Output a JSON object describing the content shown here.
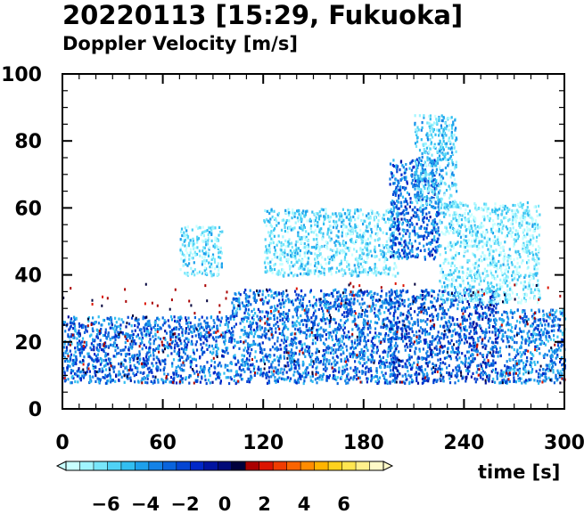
{
  "title": "20220113 [15:29, Fukuoka]",
  "subtitle": "Doppler Velocity [m/s]",
  "chart_data": {
    "type": "heatmap",
    "title": "20220113 [15:29, Fukuoka]",
    "subtitle": "Doppler Velocity [m/s]",
    "xlabel": "time [s]",
    "ylabel": "",
    "xlim": [
      0,
      300
    ],
    "ylim": [
      0,
      100
    ],
    "x_ticks": [
      0,
      60,
      120,
      180,
      240,
      300
    ],
    "y_ticks": [
      0,
      20,
      40,
      60,
      80,
      100
    ],
    "colorbar": {
      "range": [
        -8,
        8
      ],
      "tick_values": [
        -6,
        -4,
        -2,
        0,
        2,
        4,
        6
      ],
      "tick_labels": [
        "−6",
        "−4",
        "−2",
        "0",
        "2",
        "4",
        "6"
      ],
      "colors": [
        "#c8ffff",
        "#a0f5ff",
        "#78e6fa",
        "#50d2f5",
        "#32bef0",
        "#1ea0eb",
        "#1482e6",
        "#0a64dc",
        "#0546d2",
        "#0028c8",
        "#0014a0",
        "#000a78",
        "#00003c",
        "#aa0000",
        "#dc1400",
        "#f03c00",
        "#fa6400",
        "#ff8c00",
        "#ffb400",
        "#ffd21e",
        "#ffe650",
        "#fff08c",
        "#fffac8"
      ]
    },
    "regions": [
      {
        "x": [
          100,
          200
        ],
        "y": [
          8,
          36
        ],
        "v": -3.2
      },
      {
        "x": [
          195,
          260
        ],
        "y": [
          8,
          36
        ],
        "v": -2.5
      },
      {
        "x": [
          260,
          300
        ],
        "y": [
          8,
          30
        ],
        "v": -3.5
      },
      {
        "x": [
          120,
          200
        ],
        "y": [
          40,
          60
        ],
        "v": -6.0
      },
      {
        "x": [
          195,
          225
        ],
        "y": [
          45,
          75
        ],
        "v": -3.0
      },
      {
        "x": [
          210,
          235
        ],
        "y": [
          60,
          88
        ],
        "v": -5.5
      },
      {
        "x": [
          225,
          285
        ],
        "y": [
          32,
          62
        ],
        "v": -6.5
      },
      {
        "x": [
          70,
          95
        ],
        "y": [
          40,
          55
        ],
        "v": -6.0
      },
      {
        "x": [
          0,
          100
        ],
        "y": [
          8,
          28
        ],
        "v": -3.0
      }
    ]
  }
}
